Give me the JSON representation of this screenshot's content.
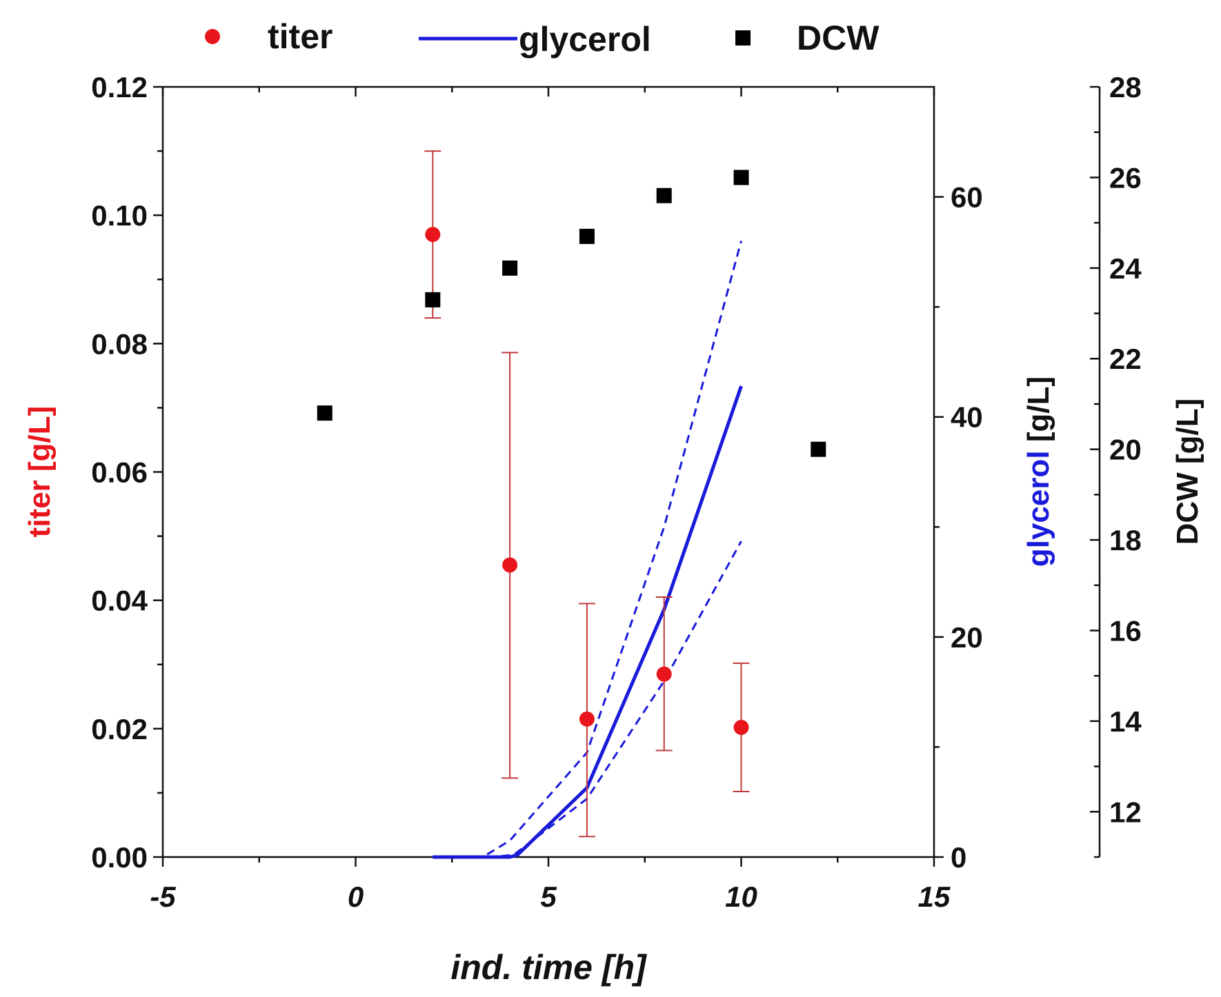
{
  "chart_data": {
    "type": "scatter",
    "legend_position": "top",
    "x_axis": {
      "label": "ind. time [h]",
      "xlim": [
        -5,
        15
      ],
      "ticks": [
        -5,
        0,
        5,
        10,
        15
      ],
      "tick_labels": [
        "-5",
        "0",
        "5",
        "10",
        "15"
      ]
    },
    "y_axes": {
      "titer": {
        "label_main": "titer ",
        "label_unit": "[g/L]",
        "ylim": [
          0,
          0.12
        ],
        "ticks": [
          0,
          0.02,
          0.04,
          0.06,
          0.08,
          0.1,
          0.12
        ],
        "tick_labels": [
          "0.00",
          "0.02",
          "0.04",
          "0.06",
          "0.08",
          "0.10",
          "0.12"
        ]
      },
      "glycerol": {
        "label_main": "glycerol ",
        "label_unit": "[g/L]",
        "ylim": [
          0,
          70
        ],
        "ticks": [
          0,
          20,
          40,
          60
        ],
        "tick_labels": [
          "0",
          "20",
          "40",
          "60"
        ]
      },
      "dcw": {
        "label": "DCW [g/L]",
        "ylim": [
          11,
          28
        ],
        "ticks": [
          12,
          14,
          16,
          18,
          20,
          22,
          24,
          26,
          28
        ],
        "tick_labels": [
          "12",
          "14",
          "16",
          "18",
          "20",
          "22",
          "24",
          "26",
          "28"
        ]
      }
    },
    "series": [
      {
        "name": "titer",
        "kind": "scatter-errorbar",
        "axis": "titer",
        "color": "#e8161c",
        "x": [
          2,
          4,
          6,
          8,
          10
        ],
        "y": [
          0.097,
          0.0455,
          0.0215,
          0.0285,
          0.0202
        ],
        "err_low": [
          0.084,
          0.0123,
          0.0032,
          0.0166,
          0.0102
        ],
        "err_high": [
          0.11,
          0.0786,
          0.0395,
          0.0405,
          0.0302
        ]
      },
      {
        "name": "glycerol",
        "kind": "line",
        "axis": "glycerol",
        "color": "#1a1adb",
        "x": [
          2,
          4,
          4.2,
          6,
          8,
          10
        ],
        "y": [
          0,
          0,
          0.2,
          6.3,
          22.5,
          42.8
        ],
        "band_upper": {
          "x": [
            2,
            3.3,
            4,
            6,
            8,
            10
          ],
          "y": [
            0,
            0,
            1.5,
            9.5,
            30,
            56
          ]
        },
        "band_lower": {
          "x": [
            2,
            3.5,
            4.1,
            6,
            8,
            10
          ],
          "y": [
            0,
            0,
            0.2,
            5.3,
            16,
            28.7
          ]
        }
      },
      {
        "name": "DCW",
        "kind": "scatter",
        "axis": "dcw",
        "color": "#000000",
        "x": [
          -0.8,
          2,
          4,
          6,
          8,
          10,
          12
        ],
        "y": [
          20.8,
          23.3,
          24.0,
          24.7,
          25.6,
          26.0,
          20.0
        ]
      }
    ]
  }
}
